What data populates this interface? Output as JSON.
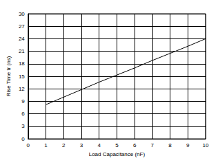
{
  "chart_data": {
    "type": "line",
    "x_label": "Load Capacitance (nF)",
    "y_label": "Rise Time tr (ns)",
    "x": [
      1,
      2,
      3,
      4,
      5,
      6,
      7,
      8,
      9,
      10
    ],
    "values": [
      8.2,
      10.0,
      11.8,
      13.6,
      15.3,
      17.0,
      18.8,
      20.5,
      22.2,
      24.0
    ],
    "color": "#000000",
    "xlim": [
      0,
      10
    ],
    "xticks": [
      0,
      1,
      2,
      3,
      4,
      5,
      6,
      7,
      8,
      9,
      10
    ],
    "ylim": [
      0,
      30
    ],
    "yticks": [
      0,
      3,
      6,
      9,
      12,
      15,
      18,
      21,
      24,
      27,
      30
    ],
    "grid": true
  }
}
